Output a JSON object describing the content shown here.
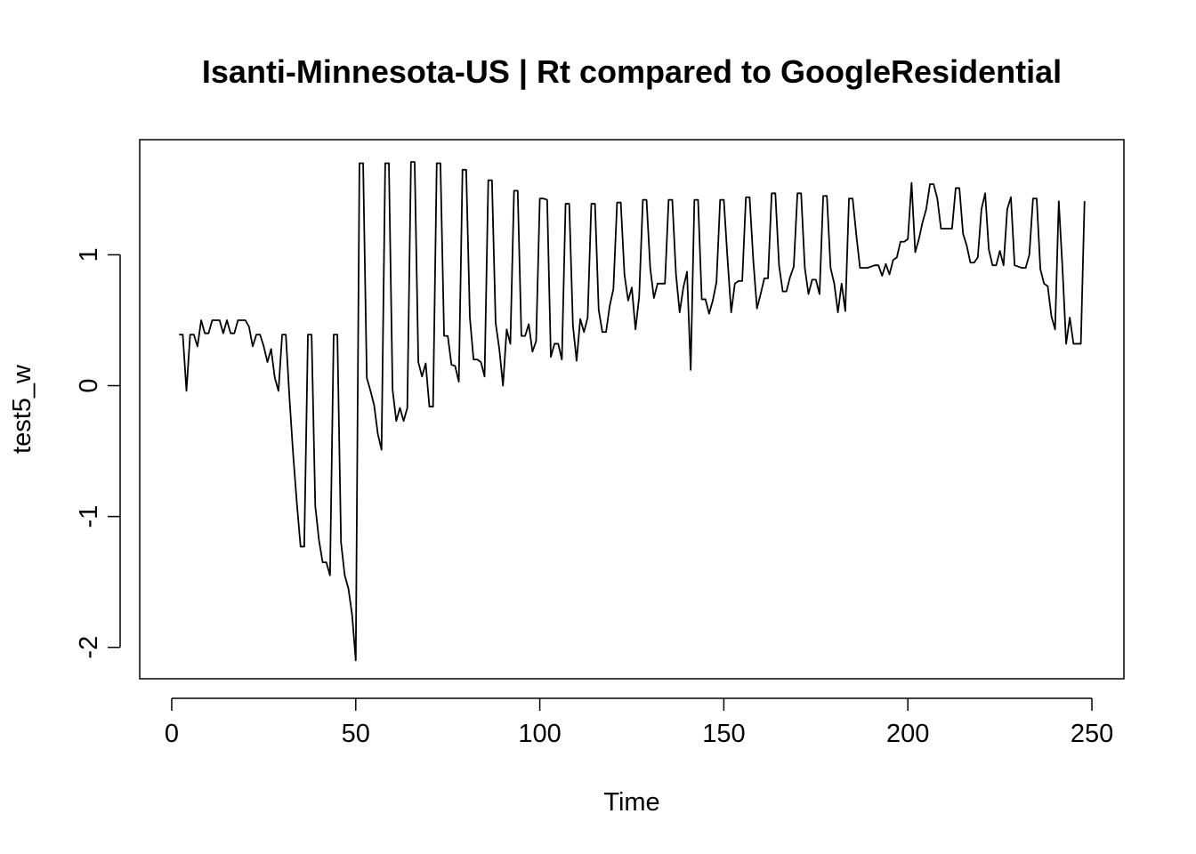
{
  "chart_data": {
    "type": "line",
    "title": "Isanti-Minnesota-US | Rt compared to GoogleResidential",
    "xlabel": "Time",
    "ylabel": "test5_w",
    "xlim": [
      -8.7,
      258.7
    ],
    "ylim": [
      -2.24,
      1.88
    ],
    "xticks": [
      0,
      50,
      100,
      150,
      200,
      250
    ],
    "yticks": [
      -2,
      -1,
      0,
      1
    ],
    "grid": false,
    "legend": "none",
    "series": [
      {
        "points": [
          [
            2,
            0.39
          ],
          [
            3,
            0.39
          ],
          [
            4,
            -0.04
          ],
          [
            5,
            0.39
          ],
          [
            6,
            0.39
          ],
          [
            7,
            0.3
          ],
          [
            8,
            0.5
          ],
          [
            9,
            0.4
          ],
          [
            10,
            0.4
          ],
          [
            11,
            0.5
          ],
          [
            12,
            0.5
          ],
          [
            13,
            0.5
          ],
          [
            14,
            0.4
          ],
          [
            15,
            0.5
          ],
          [
            16,
            0.4
          ],
          [
            17,
            0.4
          ],
          [
            18,
            0.5
          ],
          [
            19,
            0.5
          ],
          [
            20,
            0.5
          ],
          [
            21,
            0.45
          ],
          [
            22,
            0.3
          ],
          [
            23,
            0.39
          ],
          [
            24,
            0.39
          ],
          [
            25,
            0.3
          ],
          [
            26,
            0.18
          ],
          [
            27,
            0.28
          ],
          [
            28,
            0.06
          ],
          [
            29,
            -0.04
          ],
          [
            30,
            0.39
          ],
          [
            31,
            0.39
          ],
          [
            32,
            -0.1
          ],
          [
            33,
            -0.53
          ],
          [
            34,
            -0.9
          ],
          [
            35,
            -1.23
          ],
          [
            36,
            -1.23
          ],
          [
            37,
            0.39
          ],
          [
            38,
            0.39
          ],
          [
            39,
            -0.92
          ],
          [
            40,
            -1.18
          ],
          [
            41,
            -1.35
          ],
          [
            42,
            -1.35
          ],
          [
            43,
            -1.45
          ],
          [
            44,
            0.39
          ],
          [
            45,
            0.39
          ],
          [
            46,
            -1.2
          ],
          [
            47,
            -1.45
          ],
          [
            48,
            -1.55
          ],
          [
            49,
            -1.75
          ],
          [
            50,
            -2.1
          ],
          [
            51,
            1.7
          ],
          [
            52,
            1.7
          ],
          [
            53,
            0.06
          ],
          [
            54,
            -0.04
          ],
          [
            55,
            -0.15
          ],
          [
            56,
            -0.37
          ],
          [
            57,
            -0.49
          ],
          [
            58,
            1.7
          ],
          [
            59,
            1.7
          ],
          [
            60,
            -0.03
          ],
          [
            61,
            -0.27
          ],
          [
            62,
            -0.17
          ],
          [
            63,
            -0.27
          ],
          [
            64,
            -0.17
          ],
          [
            65,
            1.71
          ],
          [
            66,
            1.71
          ],
          [
            67,
            0.18
          ],
          [
            68,
            0.07
          ],
          [
            69,
            0.17
          ],
          [
            70,
            -0.16
          ],
          [
            71,
            -0.16
          ],
          [
            72,
            1.7
          ],
          [
            73,
            1.7
          ],
          [
            74,
            0.38
          ],
          [
            75,
            0.38
          ],
          [
            76,
            0.16
          ],
          [
            77,
            0.15
          ],
          [
            78,
            0.03
          ],
          [
            79,
            1.65
          ],
          [
            80,
            1.65
          ],
          [
            81,
            0.52
          ],
          [
            82,
            0.2
          ],
          [
            83,
            0.2
          ],
          [
            84,
            0.18
          ],
          [
            85,
            0.07
          ],
          [
            86,
            1.57
          ],
          [
            87,
            1.57
          ],
          [
            88,
            0.48
          ],
          [
            89,
            0.28
          ],
          [
            90,
            0.0
          ],
          [
            91,
            0.43
          ],
          [
            92,
            0.32
          ],
          [
            93,
            1.49
          ],
          [
            94,
            1.49
          ],
          [
            95,
            0.38
          ],
          [
            96,
            0.38
          ],
          [
            97,
            0.47
          ],
          [
            98,
            0.26
          ],
          [
            99,
            0.34
          ],
          [
            100,
            1.43
          ],
          [
            101,
            1.43
          ],
          [
            102,
            1.42
          ],
          [
            103,
            0.22
          ],
          [
            104,
            0.32
          ],
          [
            105,
            0.32
          ],
          [
            106,
            0.2
          ],
          [
            107,
            1.39
          ],
          [
            108,
            1.39
          ],
          [
            109,
            0.46
          ],
          [
            110,
            0.19
          ],
          [
            111,
            0.51
          ],
          [
            112,
            0.41
          ],
          [
            113,
            0.52
          ],
          [
            114,
            1.39
          ],
          [
            115,
            1.39
          ],
          [
            116,
            0.58
          ],
          [
            117,
            0.41
          ],
          [
            118,
            0.41
          ],
          [
            119,
            0.61
          ],
          [
            120,
            0.74
          ],
          [
            121,
            1.4
          ],
          [
            122,
            1.4
          ],
          [
            123,
            0.85
          ],
          [
            124,
            0.65
          ],
          [
            125,
            0.75
          ],
          [
            126,
            0.43
          ],
          [
            127,
            0.68
          ],
          [
            128,
            1.42
          ],
          [
            129,
            1.42
          ],
          [
            130,
            0.9
          ],
          [
            131,
            0.67
          ],
          [
            132,
            0.78
          ],
          [
            133,
            0.78
          ],
          [
            134,
            0.78
          ],
          [
            135,
            1.42
          ],
          [
            136,
            1.42
          ],
          [
            137,
            0.85
          ],
          [
            138,
            0.56
          ],
          [
            139,
            0.75
          ],
          [
            140,
            0.87
          ],
          [
            141,
            0.12
          ],
          [
            142,
            1.42
          ],
          [
            143,
            1.42
          ],
          [
            144,
            0.66
          ],
          [
            145,
            0.66
          ],
          [
            146,
            0.55
          ],
          [
            147,
            0.65
          ],
          [
            148,
            0.79
          ],
          [
            149,
            1.42
          ],
          [
            150,
            1.42
          ],
          [
            151,
            0.97
          ],
          [
            152,
            0.56
          ],
          [
            153,
            0.78
          ],
          [
            154,
            0.8
          ],
          [
            155,
            0.8
          ],
          [
            156,
            1.44
          ],
          [
            157,
            1.44
          ],
          [
            158,
            0.96
          ],
          [
            159,
            0.59
          ],
          [
            160,
            0.7
          ],
          [
            161,
            0.82
          ],
          [
            162,
            0.82
          ],
          [
            163,
            1.47
          ],
          [
            164,
            1.47
          ],
          [
            165,
            0.92
          ],
          [
            166,
            0.72
          ],
          [
            167,
            0.72
          ],
          [
            168,
            0.83
          ],
          [
            169,
            0.91
          ],
          [
            170,
            1.47
          ],
          [
            171,
            1.47
          ],
          [
            172,
            0.9
          ],
          [
            173,
            0.7
          ],
          [
            174,
            0.81
          ],
          [
            175,
            0.81
          ],
          [
            176,
            0.7
          ],
          [
            177,
            1.45
          ],
          [
            178,
            1.45
          ],
          [
            179,
            0.9
          ],
          [
            180,
            0.78
          ],
          [
            181,
            0.56
          ],
          [
            182,
            0.78
          ],
          [
            183,
            0.57
          ],
          [
            184,
            1.43
          ],
          [
            185,
            1.43
          ],
          [
            186,
            1.15
          ],
          [
            187,
            0.9
          ],
          [
            188,
            0.9
          ],
          [
            189,
            0.9
          ],
          [
            190,
            0.91
          ],
          [
            191,
            0.92
          ],
          [
            192,
            0.92
          ],
          [
            193,
            0.84
          ],
          [
            194,
            0.93
          ],
          [
            195,
            0.85
          ],
          [
            196,
            0.96
          ],
          [
            197,
            0.98
          ],
          [
            198,
            1.1
          ],
          [
            199,
            1.1
          ],
          [
            200,
            1.12
          ],
          [
            201,
            1.55
          ],
          [
            202,
            1.02
          ],
          [
            203,
            1.12
          ],
          [
            204,
            1.25
          ],
          [
            205,
            1.35
          ],
          [
            206,
            1.54
          ],
          [
            207,
            1.54
          ],
          [
            208,
            1.43
          ],
          [
            209,
            1.2
          ],
          [
            210,
            1.2
          ],
          [
            211,
            1.2
          ],
          [
            212,
            1.2
          ],
          [
            213,
            1.51
          ],
          [
            214,
            1.51
          ],
          [
            215,
            1.16
          ],
          [
            216,
            1.07
          ],
          [
            217,
            0.94
          ],
          [
            218,
            0.94
          ],
          [
            219,
            0.98
          ],
          [
            220,
            1.35
          ],
          [
            221,
            1.47
          ],
          [
            222,
            1.04
          ],
          [
            223,
            0.92
          ],
          [
            224,
            0.92
          ],
          [
            225,
            1.03
          ],
          [
            226,
            0.92
          ],
          [
            227,
            1.35
          ],
          [
            228,
            1.44
          ],
          [
            229,
            0.92
          ],
          [
            230,
            0.91
          ],
          [
            231,
            0.9
          ],
          [
            232,
            0.9
          ],
          [
            233,
            1.0
          ],
          [
            234,
            1.43
          ],
          [
            235,
            1.43
          ],
          [
            236,
            0.89
          ],
          [
            237,
            0.78
          ],
          [
            238,
            0.76
          ],
          [
            239,
            0.53
          ],
          [
            240,
            0.43
          ],
          [
            241,
            1.41
          ],
          [
            242,
            0.9
          ],
          [
            243,
            0.32
          ],
          [
            244,
            0.52
          ],
          [
            245,
            0.32
          ],
          [
            246,
            0.32
          ],
          [
            247,
            0.32
          ],
          [
            248,
            1.41
          ]
        ]
      }
    ]
  }
}
